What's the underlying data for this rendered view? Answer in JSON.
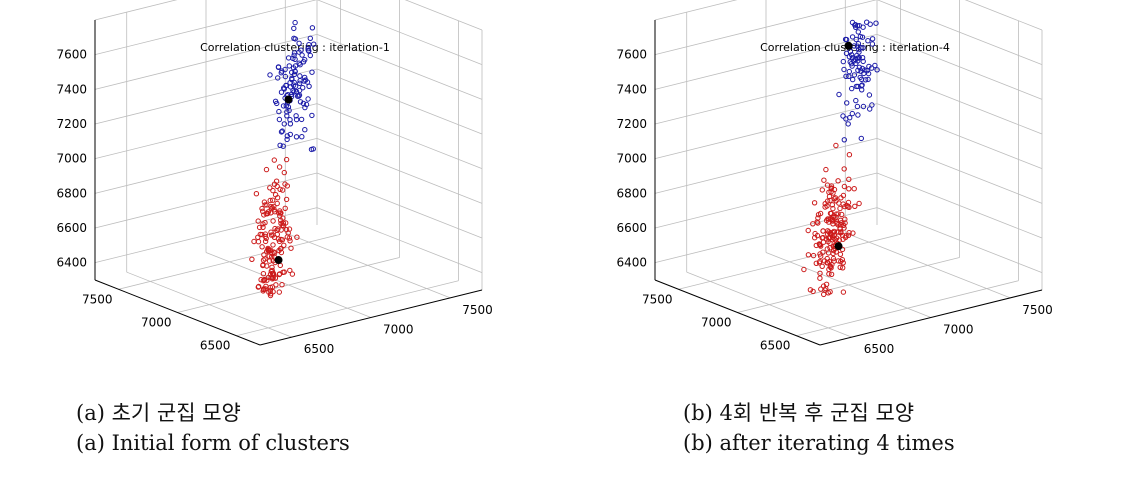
{
  "chart_data": [
    {
      "type": "scatter3d",
      "title": "Correlation clustering : iterlation-1",
      "axes": {
        "x": {
          "range": [
            6300,
            7700
          ],
          "ticks": [
            6500,
            7000,
            7500
          ],
          "tick_labels": [
            "6500",
            "7000",
            "7500"
          ]
        },
        "y": {
          "range": [
            6300,
            7700
          ],
          "ticks": [
            6500,
            7000,
            7500
          ],
          "tick_labels": [
            "6500",
            "7000",
            "7500"
          ]
        },
        "z": {
          "range": [
            6300,
            7800
          ],
          "ticks": [
            6400,
            6600,
            6800,
            7000,
            7200,
            7400,
            7600
          ],
          "tick_labels": [
            "6400",
            "6600",
            "6800",
            "7000",
            "7200",
            "7400",
            "7600"
          ]
        }
      },
      "grid": true,
      "series": [
        {
          "color": "#1a1aa8",
          "marker": "open-circle",
          "count": 110,
          "center": [
            7000,
            7000,
            7450
          ]
        },
        {
          "color": "#cc1a1a",
          "marker": "open-circle",
          "count": 160,
          "center": [
            6900,
            6950,
            6570
          ]
        }
      ],
      "centroids": [
        [
          7000,
          7000,
          7370
        ],
        [
          6900,
          6950,
          6480
        ]
      ]
    },
    {
      "type": "scatter3d",
      "title": "Correlation clustering : iterlation-4",
      "axes": {
        "x": {
          "range": [
            6300,
            7700
          ],
          "ticks": [
            6500,
            7000,
            7500
          ],
          "tick_labels": [
            "6500",
            "7000",
            "7500"
          ]
        },
        "y": {
          "range": [
            6300,
            7700
          ],
          "ticks": [
            6500,
            7000,
            7500
          ],
          "tick_labels": [
            "6500",
            "7000",
            "7500"
          ]
        },
        "z": {
          "range": [
            6300,
            7800
          ],
          "ticks": [
            6400,
            6600,
            6800,
            7000,
            7200,
            7400,
            7600
          ],
          "tick_labels": [
            "6400",
            "6600",
            "6800",
            "7000",
            "7200",
            "7400",
            "7600"
          ]
        }
      },
      "grid": true,
      "series": [
        {
          "color": "#1a1aa8",
          "marker": "open-circle",
          "count": 90,
          "center": [
            7000,
            7000,
            7550
          ]
        },
        {
          "color": "#cc1a1a",
          "marker": "open-circle",
          "count": 180,
          "center": [
            6900,
            6950,
            6650
          ]
        }
      ],
      "centroids": [
        [
          7000,
          7000,
          7680
        ],
        [
          6900,
          6950,
          6560
        ]
      ]
    }
  ],
  "captions": {
    "a": {
      "korean": "(a) 초기 군집 모양",
      "english": "(a) Initial form of clusters"
    },
    "b": {
      "korean": "(b) 4회 반복 후 군집 모양",
      "english": "(b) after iterating 4 times"
    }
  }
}
